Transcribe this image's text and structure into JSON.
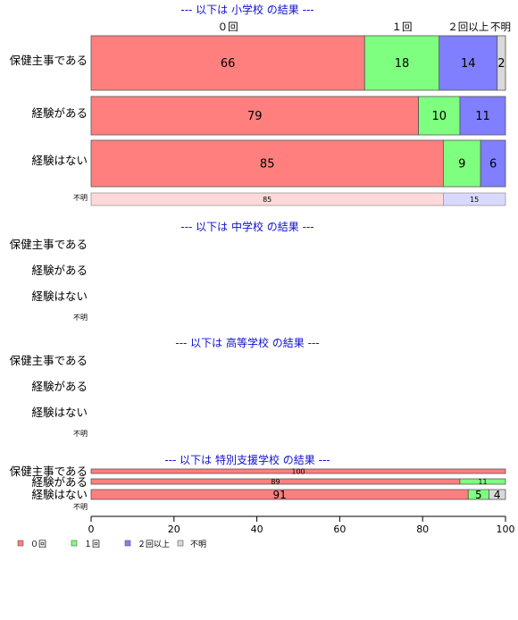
{
  "chart_data": {
    "type": "bar",
    "orientation": "horizontal",
    "stacked": true,
    "percent": true,
    "xlim": [
      0,
      100
    ],
    "x_ticks": [
      0,
      20,
      40,
      60,
      80,
      100
    ],
    "series_names": [
      "０回",
      "１回",
      "２回以上",
      "不明"
    ],
    "legend_labels": [
      "０回",
      "１回",
      "２回以上",
      "不明"
    ],
    "colors": [
      "#ff7f7f",
      "#7fff7f",
      "#7f7fff",
      "#d9d9d9"
    ],
    "faded_colors": [
      "#ffd9d9",
      "#d9ffd9",
      "#d9d9ff",
      "#efefef"
    ],
    "legend_placement": "bottom-left",
    "grid": false,
    "panels": [
      {
        "title": "--- 以下は 小学校 の結果 ---",
        "column_headers": [
          "０回",
          "１回",
          "２回以上",
          "不明"
        ],
        "rows": [
          {
            "category": "保健主事である",
            "values": [
              66,
              18,
              14,
              2
            ]
          },
          {
            "category": "経験がある",
            "values": [
              79,
              10,
              11,
              0
            ]
          },
          {
            "category": "経験はない",
            "values": [
              85,
              9,
              6,
              0
            ]
          },
          {
            "category": "不明",
            "values": [
              85,
              0,
              15,
              0
            ]
          }
        ]
      },
      {
        "title": "--- 以下は 中学校 の結果 ---",
        "rows": [
          {
            "category": "保健主事である",
            "values": []
          },
          {
            "category": "経験がある",
            "values": []
          },
          {
            "category": "経験はない",
            "values": []
          },
          {
            "category": "不明",
            "values": []
          }
        ]
      },
      {
        "title": "--- 以下は 高等学校 の結果 ---",
        "rows": [
          {
            "category": "保健主事である",
            "values": []
          },
          {
            "category": "経験がある",
            "values": []
          },
          {
            "category": "経験はない",
            "values": []
          },
          {
            "category": "不明",
            "values": []
          }
        ]
      },
      {
        "title": "--- 以下は 特別支援学校 の結果 ---",
        "rows": [
          {
            "category": "保健主事である",
            "values": [
              100,
              0,
              0,
              0
            ]
          },
          {
            "category": "経験がある",
            "values": [
              89,
              11,
              0,
              0
            ]
          },
          {
            "category": "経験はない",
            "values": [
              91,
              5,
              0,
              4
            ]
          },
          {
            "category": "不明",
            "values": []
          }
        ]
      }
    ]
  }
}
